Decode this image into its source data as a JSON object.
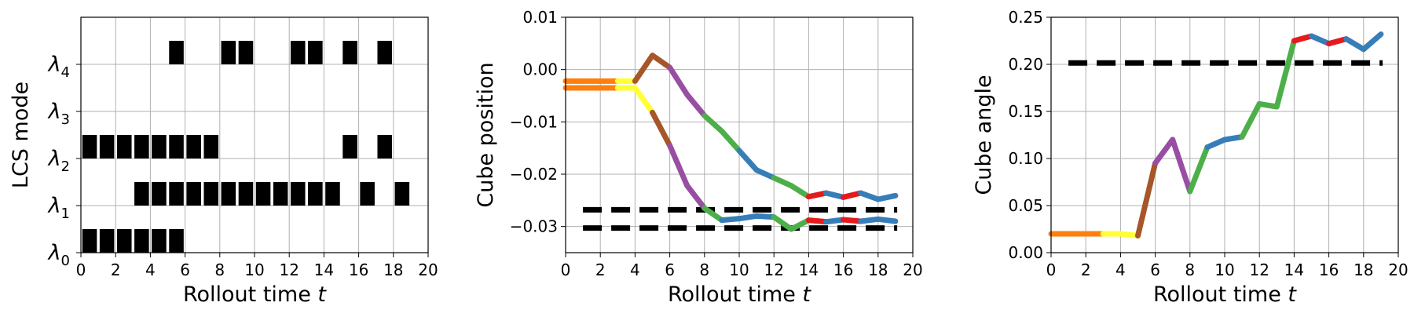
{
  "chart_data": [
    {
      "type": "heatmap",
      "xlabel": "Rollout time ",
      "xlabel_var": "t",
      "ylabel": "LCS mode",
      "xlim": [
        0,
        20
      ],
      "xticks": [
        0,
        2,
        4,
        6,
        8,
        10,
        12,
        14,
        16,
        18,
        20
      ],
      "categories": [
        "λ0",
        "λ1",
        "λ2",
        "λ3",
        "λ4"
      ],
      "category_labels": [
        {
          "base": "λ",
          "sub": "0"
        },
        {
          "base": "λ",
          "sub": "1"
        },
        {
          "base": "λ",
          "sub": "2"
        },
        {
          "base": "λ",
          "sub": "3"
        },
        {
          "base": "λ",
          "sub": "4"
        }
      ],
      "grid": true,
      "active_steps": {
        "λ0": [
          0,
          1,
          2,
          3,
          4,
          5
        ],
        "λ1": [
          3,
          4,
          5,
          6,
          7,
          8,
          9,
          10,
          11,
          12,
          13,
          14,
          16,
          18
        ],
        "λ2": [
          0,
          1,
          2,
          3,
          4,
          5,
          6,
          7,
          15,
          17
        ],
        "λ3": [],
        "λ4": [
          5,
          8,
          9,
          12,
          13,
          15,
          17
        ]
      }
    },
    {
      "type": "line",
      "xlabel": "Rollout time ",
      "xlabel_var": "t",
      "ylabel": "Cube position",
      "xlim": [
        0,
        20
      ],
      "ylim": [
        -0.035,
        0.01
      ],
      "xticks": [
        0,
        2,
        4,
        6,
        8,
        10,
        12,
        14,
        16,
        18,
        20
      ],
      "yticks": [
        "0.01",
        "0.00",
        "−0.01",
        "−0.02",
        "−0.03"
      ],
      "ytick_values": [
        0.01,
        0.0,
        -0.01,
        -0.02,
        -0.03
      ],
      "grid": true,
      "reference_lines": [
        -0.0268,
        -0.0303
      ],
      "series": [
        {
          "x": [
            0,
            1,
            2,
            3,
            4,
            5,
            6,
            7,
            8,
            9,
            10,
            11,
            12,
            13,
            14,
            15,
            16,
            17,
            18,
            19
          ],
          "y": [
            -0.0022,
            -0.0022,
            -0.0022,
            -0.0022,
            -0.0022,
            0.0027,
            0.0004,
            -0.0048,
            -0.0088,
            -0.0118,
            -0.0155,
            -0.0192,
            -0.0207,
            -0.0222,
            -0.0243,
            -0.0236,
            -0.0244,
            -0.0236,
            -0.0248,
            -0.0241
          ],
          "segment_colors": [
            "#ff7f0e",
            "#ff7f0e",
            "#ff7f0e",
            "#ffff33",
            "#a65628",
            "#a65628",
            "#984ea3",
            "#984ea3",
            "#4daf4a",
            "#4daf4a",
            "#377eb8",
            "#377eb8",
            "#4daf4a",
            "#4daf4a",
            "#e41a1c",
            "#377eb8",
            "#e41a1c",
            "#377eb8",
            "#377eb8"
          ]
        },
        {
          "x": [
            0,
            1,
            2,
            3,
            4,
            5,
            6,
            7,
            8,
            9,
            10,
            11,
            12,
            13,
            14,
            15,
            16,
            17,
            18,
            19
          ],
          "y": [
            -0.0035,
            -0.0035,
            -0.0035,
            -0.0035,
            -0.0035,
            -0.0082,
            -0.0145,
            -0.0222,
            -0.0265,
            -0.0288,
            -0.0285,
            -0.028,
            -0.0282,
            -0.0305,
            -0.0288,
            -0.0291,
            -0.0287,
            -0.029,
            -0.0286,
            -0.029
          ],
          "segment_colors": [
            "#ff7f0e",
            "#ff7f0e",
            "#ff7f0e",
            "#ffff33",
            "#ffff33",
            "#a65628",
            "#984ea3",
            "#984ea3",
            "#4daf4a",
            "#377eb8",
            "#377eb8",
            "#377eb8",
            "#4daf4a",
            "#4daf4a",
            "#e41a1c",
            "#377eb8",
            "#e41a1c",
            "#377eb8",
            "#377eb8"
          ]
        }
      ]
    },
    {
      "type": "line",
      "xlabel": "Rollout time ",
      "xlabel_var": "t",
      "ylabel": "Cube angle",
      "xlim": [
        0,
        20
      ],
      "ylim": [
        0.0,
        0.25
      ],
      "xticks": [
        0,
        2,
        4,
        6,
        8,
        10,
        12,
        14,
        16,
        18,
        20
      ],
      "yticks": [
        "0.00",
        "0.05",
        "0.10",
        "0.15",
        "0.20",
        "0.25"
      ],
      "ytick_values": [
        0.0,
        0.05,
        0.1,
        0.15,
        0.2,
        0.25
      ],
      "grid": true,
      "reference_lines": [
        0.2015
      ],
      "series": [
        {
          "x": [
            0,
            1,
            2,
            3,
            4,
            5,
            6,
            7,
            8,
            9,
            10,
            11,
            12,
            13,
            14,
            15,
            16,
            17,
            18,
            19
          ],
          "y": [
            0.02,
            0.02,
            0.02,
            0.02,
            0.02,
            0.018,
            0.095,
            0.12,
            0.065,
            0.112,
            0.12,
            0.123,
            0.158,
            0.155,
            0.225,
            0.23,
            0.222,
            0.227,
            0.216,
            0.232
          ],
          "segment_colors": [
            "#ff7f0e",
            "#ff7f0e",
            "#ff7f0e",
            "#ffff33",
            "#ffff33",
            "#a65628",
            "#984ea3",
            "#984ea3",
            "#4daf4a",
            "#377eb8",
            "#377eb8",
            "#4daf4a",
            "#4daf4a",
            "#4daf4a",
            "#e41a1c",
            "#377eb8",
            "#e41a1c",
            "#377eb8",
            "#377eb8"
          ]
        }
      ]
    }
  ]
}
